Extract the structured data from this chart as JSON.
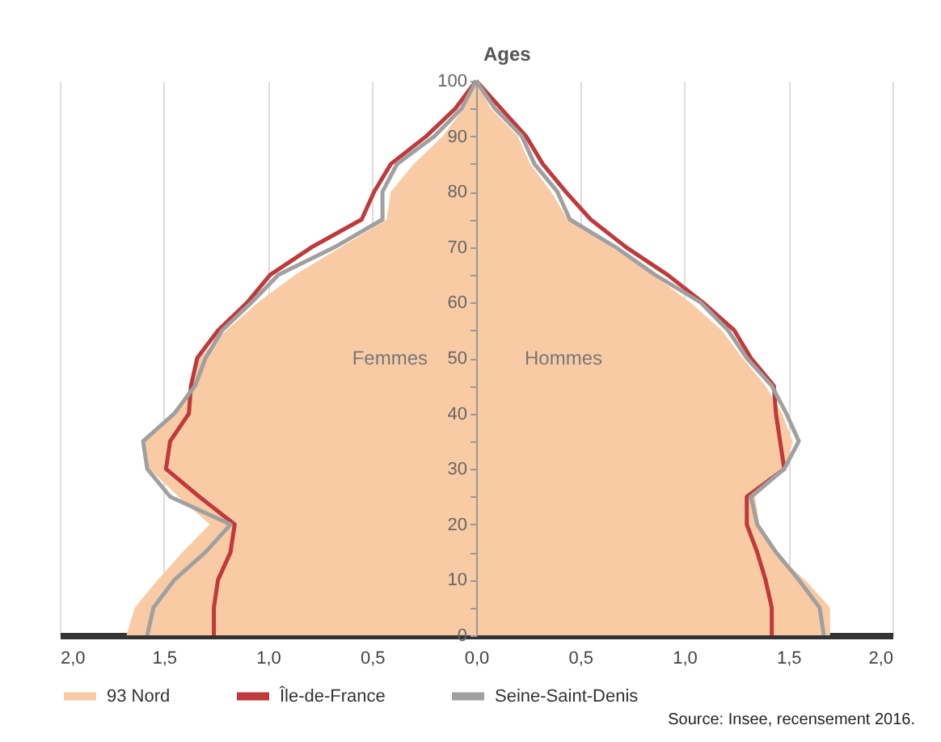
{
  "chart_data": {
    "type": "area",
    "orientation": "horizontal",
    "ylabel": "Ages",
    "annotations": [
      "Femmes",
      "Hommes",
      "Source: Insee, recensement 2016."
    ],
    "x": [
      0,
      5,
      10,
      15,
      20,
      25,
      30,
      35,
      40,
      45,
      50,
      55,
      60,
      65,
      70,
      75,
      80,
      85,
      90,
      95,
      100
    ],
    "series": [
      {
        "name": "93 Nord",
        "color": "#f9cba5",
        "values": [
          -1.68,
          -1.64,
          -1.53,
          -1.41,
          -1.28,
          -1.43,
          -1.57,
          -1.6,
          -1.45,
          -1.37,
          -1.33,
          -1.2,
          -1.05,
          -0.87,
          -0.65,
          -0.43,
          -0.41,
          -0.3,
          -0.16,
          -0.06,
          0
        ]
      },
      {
        "color": "#f9cba5",
        "values": [
          1.7,
          1.7,
          1.58,
          1.43,
          1.36,
          1.34,
          1.49,
          1.52,
          1.47,
          1.39,
          1.28,
          1.18,
          1.03,
          0.85,
          0.65,
          0.44,
          0.36,
          0.26,
          0.2,
          0.07,
          0
        ]
      },
      {
        "name": "Île-de-France",
        "type": "line",
        "color": "#c0393b",
        "values": [
          -1.26,
          -1.26,
          -1.24,
          -1.18,
          -1.16,
          -1.33,
          -1.49,
          -1.47,
          -1.38,
          -1.37,
          -1.34,
          -1.24,
          -1.1,
          -0.99,
          -0.79,
          -0.55,
          -0.49,
          -0.41,
          -0.24,
          -0.1,
          0
        ]
      },
      {
        "type": "line",
        "color": "#c0393b",
        "values": [
          1.42,
          1.42,
          1.39,
          1.35,
          1.3,
          1.3,
          1.48,
          1.46,
          1.44,
          1.43,
          1.32,
          1.24,
          1.09,
          0.92,
          0.72,
          0.55,
          0.43,
          0.32,
          0.24,
          0.12,
          0
        ]
      },
      {
        "name": "Seine-Saint-Denis",
        "type": "line",
        "color": "#a0a0a0",
        "values": [
          -1.58,
          -1.55,
          -1.45,
          -1.3,
          -1.18,
          -1.47,
          -1.58,
          -1.6,
          -1.45,
          -1.35,
          -1.3,
          -1.22,
          -1.08,
          -0.95,
          -0.68,
          -0.45,
          -0.45,
          -0.38,
          -0.2,
          -0.07,
          0
        ]
      },
      {
        "type": "line",
        "color": "#a0a0a0",
        "values": [
          1.67,
          1.65,
          1.55,
          1.44,
          1.35,
          1.32,
          1.48,
          1.55,
          1.49,
          1.42,
          1.3,
          1.21,
          1.08,
          0.86,
          0.67,
          0.45,
          0.39,
          0.28,
          0.22,
          0.09,
          0
        ]
      }
    ],
    "xlim": [
      -2,
      2
    ],
    "xticks": [
      {
        "value": -2,
        "label": "2,0"
      },
      {
        "value": -1.5,
        "label": "1,5"
      },
      {
        "value": -1,
        "label": "1,0"
      },
      {
        "value": -0.5,
        "label": "0,5"
      },
      {
        "value": 0,
        "label": "0,0"
      },
      {
        "value": 0.5,
        "label": "0,5"
      },
      {
        "value": 1,
        "label": "1,0"
      },
      {
        "value": 1.5,
        "label": "1,5"
      },
      {
        "value": 2,
        "label": "2,0"
      }
    ],
    "ylim": [
      0,
      100
    ],
    "yticks": [
      0,
      {
        "value": 5,
        "label": null
      },
      10,
      {
        "value": 15,
        "label": null
      },
      20,
      {
        "value": 25,
        "label": null
      },
      30,
      {
        "value": 35,
        "label": null
      },
      40,
      {
        "value": 45,
        "label": null
      },
      50,
      {
        "value": 55,
        "label": null
      },
      60,
      {
        "value": 65,
        "label": null
      },
      70,
      {
        "value": 75,
        "label": null
      },
      80,
      {
        "value": 85,
        "label": null
      },
      90,
      {
        "value": 95,
        "label": null
      },
      100
    ],
    "grid": "x",
    "legend": "bottom"
  }
}
